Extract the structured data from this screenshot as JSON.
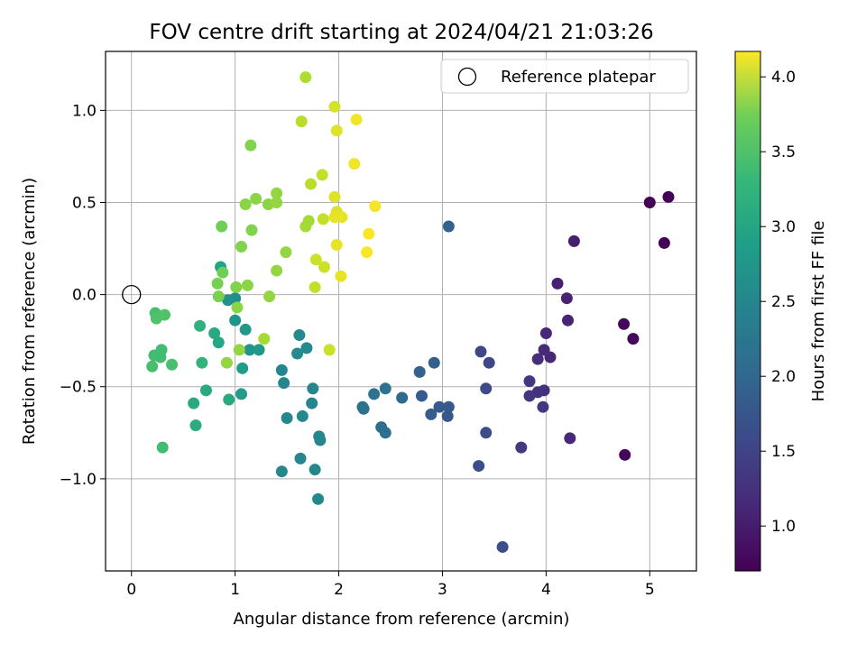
{
  "chart_data": {
    "type": "scatter",
    "title": "FOV centre drift starting at 2024/04/21 21:03:26",
    "xlabel": "Angular distance from reference (arcmin)",
    "ylabel": "Rotation from reference (arcmin)",
    "xlim": [
      -0.25,
      5.45
    ],
    "ylim": [
      -1.5,
      1.32
    ],
    "xticks": [
      0,
      1,
      2,
      3,
      4,
      5
    ],
    "xtick_labels": [
      "0",
      "1",
      "2",
      "3",
      "4",
      "5"
    ],
    "yticks": [
      -1.0,
      -0.5,
      0.0,
      0.5,
      1.0
    ],
    "ytick_labels": [
      "−1.0",
      "−0.5",
      "0.0",
      "0.5",
      "1.0"
    ],
    "grid": true,
    "legend": {
      "placement": "top-right",
      "entries": [
        {
          "label": "Reference platepar",
          "marker": "open-circle"
        }
      ]
    },
    "reference_point": {
      "x": 0,
      "y": 0
    },
    "colorbar": {
      "label": "Hours from first FF file",
      "colormap": "viridis",
      "range": [
        0.7,
        4.17
      ],
      "ticks": [
        1.0,
        1.5,
        2.0,
        2.5,
        3.0,
        3.5,
        4.0
      ],
      "tick_labels": [
        "1.0",
        "1.5",
        "2.0",
        "2.5",
        "3.0",
        "3.5",
        "4.0"
      ]
    },
    "points": [
      {
        "x": 5.0,
        "y": 0.5,
        "t": 0.72
      },
      {
        "x": 5.18,
        "y": 0.53,
        "t": 0.72
      },
      {
        "x": 5.14,
        "y": 0.28,
        "t": 0.74
      },
      {
        "x": 4.75,
        "y": -0.16,
        "t": 0.78
      },
      {
        "x": 4.84,
        "y": -0.24,
        "t": 0.76
      },
      {
        "x": 4.76,
        "y": -0.87,
        "t": 0.76
      },
      {
        "x": 4.27,
        "y": 0.29,
        "t": 1.0
      },
      {
        "x": 4.11,
        "y": 0.06,
        "t": 1.02
      },
      {
        "x": 4.2,
        "y": -0.02,
        "t": 1.03
      },
      {
        "x": 4.21,
        "y": -0.14,
        "t": 1.05
      },
      {
        "x": 4.0,
        "y": -0.21,
        "t": 1.1
      },
      {
        "x": 3.98,
        "y": -0.3,
        "t": 1.12
      },
      {
        "x": 4.04,
        "y": -0.34,
        "t": 1.08
      },
      {
        "x": 3.92,
        "y": -0.35,
        "t": 1.15
      },
      {
        "x": 4.23,
        "y": -0.78,
        "t": 1.1
      },
      {
        "x": 3.84,
        "y": -0.47,
        "t": 1.25
      },
      {
        "x": 3.98,
        "y": -0.52,
        "t": 1.18
      },
      {
        "x": 3.92,
        "y": -0.53,
        "t": 1.2
      },
      {
        "x": 3.84,
        "y": -0.55,
        "t": 1.22
      },
      {
        "x": 3.97,
        "y": -0.61,
        "t": 1.25
      },
      {
        "x": 3.76,
        "y": -0.83,
        "t": 1.3
      },
      {
        "x": 3.37,
        "y": -0.31,
        "t": 1.45
      },
      {
        "x": 3.45,
        "y": -0.37,
        "t": 1.45
      },
      {
        "x": 3.42,
        "y": -0.51,
        "t": 1.48
      },
      {
        "x": 3.42,
        "y": -0.75,
        "t": 1.52
      },
      {
        "x": 3.35,
        "y": -0.93,
        "t": 1.52
      },
      {
        "x": 3.58,
        "y": -1.37,
        "t": 1.55
      },
      {
        "x": 3.06,
        "y": 0.37,
        "t": 1.8
      },
      {
        "x": 2.92,
        "y": -0.37,
        "t": 1.75
      },
      {
        "x": 2.78,
        "y": -0.42,
        "t": 1.8
      },
      {
        "x": 2.8,
        "y": -0.55,
        "t": 1.7
      },
      {
        "x": 2.97,
        "y": -0.61,
        "t": 1.7
      },
      {
        "x": 3.06,
        "y": -0.61,
        "t": 1.68
      },
      {
        "x": 3.05,
        "y": -0.66,
        "t": 1.65
      },
      {
        "x": 2.89,
        "y": -0.65,
        "t": 1.72
      },
      {
        "x": 2.61,
        "y": -0.56,
        "t": 1.9
      },
      {
        "x": 2.45,
        "y": -0.51,
        "t": 2.0
      },
      {
        "x": 2.34,
        "y": -0.54,
        "t": 2.0
      },
      {
        "x": 2.23,
        "y": -0.61,
        "t": 2.0
      },
      {
        "x": 2.24,
        "y": -0.62,
        "t": 2.02
      },
      {
        "x": 2.41,
        "y": -0.72,
        "t": 1.95
      },
      {
        "x": 2.45,
        "y": -0.75,
        "t": 1.95
      },
      {
        "x": 1.62,
        "y": -0.22,
        "t": 2.35
      },
      {
        "x": 1.6,
        "y": -0.32,
        "t": 2.35
      },
      {
        "x": 1.69,
        "y": -0.29,
        "t": 2.35
      },
      {
        "x": 1.45,
        "y": -0.41,
        "t": 2.3
      },
      {
        "x": 1.47,
        "y": -0.48,
        "t": 2.3
      },
      {
        "x": 1.75,
        "y": -0.51,
        "t": 2.3
      },
      {
        "x": 1.74,
        "y": -0.59,
        "t": 2.3
      },
      {
        "x": 1.5,
        "y": -0.67,
        "t": 2.32
      },
      {
        "x": 1.65,
        "y": -0.66,
        "t": 2.32
      },
      {
        "x": 1.81,
        "y": -0.77,
        "t": 2.3
      },
      {
        "x": 1.82,
        "y": -0.79,
        "t": 2.3
      },
      {
        "x": 1.63,
        "y": -0.89,
        "t": 2.3
      },
      {
        "x": 1.45,
        "y": -0.96,
        "t": 2.32
      },
      {
        "x": 1.77,
        "y": -0.95,
        "t": 2.32
      },
      {
        "x": 1.8,
        "y": -1.11,
        "t": 2.32
      },
      {
        "x": 1.0,
        "y": -0.02,
        "t": 2.4
      },
      {
        "x": 0.93,
        "y": -0.03,
        "t": 2.45
      },
      {
        "x": 1.0,
        "y": -0.14,
        "t": 2.5
      },
      {
        "x": 1.1,
        "y": -0.19,
        "t": 2.55
      },
      {
        "x": 1.14,
        "y": -0.3,
        "t": 2.5
      },
      {
        "x": 1.23,
        "y": -0.3,
        "t": 2.55
      },
      {
        "x": 1.07,
        "y": -0.4,
        "t": 2.6
      },
      {
        "x": 1.06,
        "y": -0.54,
        "t": 2.6
      },
      {
        "x": 0.86,
        "y": 0.15,
        "t": 2.7
      },
      {
        "x": 0.84,
        "y": -0.26,
        "t": 2.75
      },
      {
        "x": 0.8,
        "y": -0.21,
        "t": 2.8
      },
      {
        "x": 0.72,
        "y": -0.52,
        "t": 2.8
      },
      {
        "x": 0.94,
        "y": -0.57,
        "t": 2.8
      },
      {
        "x": 0.6,
        "y": -0.59,
        "t": 2.8
      },
      {
        "x": 0.62,
        "y": -0.71,
        "t": 2.85
      },
      {
        "x": 0.66,
        "y": -0.17,
        "t": 2.9
      },
      {
        "x": 0.68,
        "y": -0.37,
        "t": 2.95
      },
      {
        "x": 0.29,
        "y": -0.3,
        "t": 3.1
      },
      {
        "x": 0.22,
        "y": -0.33,
        "t": 3.1
      },
      {
        "x": 0.28,
        "y": -0.34,
        "t": 3.1
      },
      {
        "x": 0.2,
        "y": -0.39,
        "t": 3.15
      },
      {
        "x": 0.39,
        "y": -0.38,
        "t": 3.15
      },
      {
        "x": 0.23,
        "y": -0.1,
        "t": 3.15
      },
      {
        "x": 0.24,
        "y": -0.13,
        "t": 3.2
      },
      {
        "x": 0.32,
        "y": -0.11,
        "t": 3.2
      },
      {
        "x": 0.3,
        "y": -0.83,
        "t": 3.1
      },
      {
        "x": 0.87,
        "y": 0.37,
        "t": 3.4
      },
      {
        "x": 0.88,
        "y": 0.12,
        "t": 3.4
      },
      {
        "x": 0.83,
        "y": 0.06,
        "t": 3.45
      },
      {
        "x": 0.84,
        "y": -0.01,
        "t": 3.45
      },
      {
        "x": 1.01,
        "y": 0.04,
        "t": 3.5
      },
      {
        "x": 1.12,
        "y": 0.05,
        "t": 3.55
      },
      {
        "x": 1.02,
        "y": -0.07,
        "t": 3.55
      },
      {
        "x": 1.04,
        "y": -0.3,
        "t": 3.6
      },
      {
        "x": 0.92,
        "y": -0.37,
        "t": 3.6
      },
      {
        "x": 1.06,
        "y": 0.26,
        "t": 3.5
      },
      {
        "x": 1.16,
        "y": 0.35,
        "t": 3.5
      },
      {
        "x": 1.1,
        "y": 0.49,
        "t": 3.55
      },
      {
        "x": 1.2,
        "y": 0.52,
        "t": 3.55
      },
      {
        "x": 1.32,
        "y": 0.49,
        "t": 3.55
      },
      {
        "x": 1.4,
        "y": 0.55,
        "t": 3.6
      },
      {
        "x": 1.4,
        "y": 0.5,
        "t": 3.6
      },
      {
        "x": 1.15,
        "y": 0.81,
        "t": 3.5
      },
      {
        "x": 1.49,
        "y": 0.23,
        "t": 3.6
      },
      {
        "x": 1.4,
        "y": 0.13,
        "t": 3.6
      },
      {
        "x": 1.33,
        "y": -0.01,
        "t": 3.6
      },
      {
        "x": 1.28,
        "y": -0.24,
        "t": 3.7
      },
      {
        "x": 1.68,
        "y": 0.37,
        "t": 3.7
      },
      {
        "x": 1.71,
        "y": 0.4,
        "t": 3.7
      },
      {
        "x": 1.68,
        "y": 1.18,
        "t": 3.75
      },
      {
        "x": 1.64,
        "y": 0.94,
        "t": 3.8
      },
      {
        "x": 1.73,
        "y": 0.6,
        "t": 3.8
      },
      {
        "x": 1.84,
        "y": 0.65,
        "t": 3.85
      },
      {
        "x": 1.85,
        "y": 0.41,
        "t": 3.85
      },
      {
        "x": 1.78,
        "y": 0.19,
        "t": 3.9
      },
      {
        "x": 1.77,
        "y": 0.04,
        "t": 3.85
      },
      {
        "x": 1.86,
        "y": 0.15,
        "t": 3.9
      },
      {
        "x": 1.91,
        "y": -0.3,
        "t": 3.9
      },
      {
        "x": 1.96,
        "y": 1.02,
        "t": 3.95
      },
      {
        "x": 1.98,
        "y": 0.89,
        "t": 4.0
      },
      {
        "x": 1.96,
        "y": 0.53,
        "t": 4.0
      },
      {
        "x": 1.98,
        "y": 0.45,
        "t": 4.0
      },
      {
        "x": 1.96,
        "y": 0.42,
        "t": 4.05
      },
      {
        "x": 2.03,
        "y": 0.42,
        "t": 4.05
      },
      {
        "x": 1.98,
        "y": 0.27,
        "t": 4.05
      },
      {
        "x": 2.02,
        "y": 0.1,
        "t": 4.05
      },
      {
        "x": 2.17,
        "y": 0.95,
        "t": 4.1
      },
      {
        "x": 2.15,
        "y": 0.71,
        "t": 4.1
      },
      {
        "x": 2.35,
        "y": 0.48,
        "t": 4.12
      },
      {
        "x": 2.29,
        "y": 0.33,
        "t": 4.15
      },
      {
        "x": 2.27,
        "y": 0.23,
        "t": 4.15
      }
    ]
  }
}
